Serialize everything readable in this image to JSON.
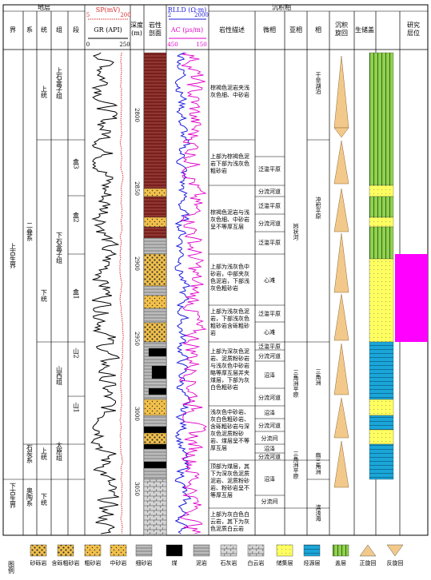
{
  "headers": {
    "strata": "地层",
    "jie": "界",
    "xi": "系",
    "tong": "统",
    "zu": "组",
    "duan": "段",
    "sp_label": "SP(mV)",
    "sp_min": "5",
    "sp_max": "200",
    "gr_label": "GR (API)",
    "gr_min": "0",
    "gr_max": "250",
    "depth_label_1": "深度",
    "depth_label_2": "(m)",
    "litho_label_1": "岩性",
    "litho_label_2": "剖面",
    "rlld_label": "RLLD (Ω·m)",
    "rlld_min": "2",
    "rlld_max": "2000",
    "ac_label": "AC (μs/m)",
    "ac_min": "450",
    "ac_max": "150",
    "facies": "沉积相",
    "rock_desc": "岩性描述",
    "micro": "微相",
    "sub": "亚相",
    "phase": "相",
    "cycle_1": "沉积",
    "cycle_2": "旋回",
    "cycle_3": "",
    "reservoir": "生储盖",
    "study_1": "研究",
    "study_2": "层位"
  },
  "strata": {
    "jie": [
      {
        "label": "上古生界"
      },
      {
        "label": "下古生界"
      }
    ],
    "xi": [
      {
        "label": "二叠系"
      },
      {
        "label": "石炭系"
      },
      {
        "label": "奥陶系"
      }
    ],
    "tong": [
      {
        "label": "上统"
      },
      {
        "label": "下统"
      },
      {
        "label": "上统"
      },
      {
        "label": "下统"
      }
    ],
    "zu": [
      {
        "label": "上石盒子组"
      },
      {
        "label": "下石盒子组"
      },
      {
        "label": "山西组"
      },
      {
        "label": "太原组"
      }
    ],
    "duan": [
      {
        "label": "盒3"
      },
      {
        "label": "盒2"
      },
      {
        "label": "盒1"
      },
      {
        "label": "山2"
      },
      {
        "label": "山1"
      }
    ]
  },
  "depth_ticks": [
    "2800",
    "2850",
    "2900",
    "2950",
    "3000",
    "3050"
  ],
  "descriptions": [
    "棕褐色泥岩夹浅灰色细、中砂岩",
    "上部为棕褐色泥岩下部为浅灰色粗砂岩",
    "棕褐色泥岩与浅灰色细、中砂岩呈不等厚互层",
    "上部为浅灰色中砂岩，中部夹灰色泥岩，下部浅灰色粗砂岩",
    "上部为浅灰色泥岩，下部浅灰色粗砂岩含砾粗砂岩",
    "上部为深灰色泥岩、泥质粉砂岩与浅灰色中砂岩略等厚互层并夹煤层，下部为灰白色粗砂岩",
    "浅灰色中砂岩、灰白色粗砂岩、含砾粗砂岩与深灰色泥质粉砂岩、煤层呈不等厚互层",
    "顶部为煤层，其下为深灰色泥质泥岩、泥质粉砂岩、粉砂岩呈不等厚互层",
    "上部为灰白色白云岩，其下为灰色泥质白云岩"
  ],
  "micro": [
    "泛滥平原",
    "分流河道",
    "泛滥平原",
    "分流河道",
    "泛滥平原",
    "心滩",
    "泛滥平原",
    "心滩",
    "泛滥平原",
    "分流河道",
    "沼泽",
    "分流河道",
    "沼泽",
    "分流河道",
    "分流间",
    "沼泽",
    "分流河道",
    "沼泽",
    "分流间"
  ],
  "sub": [
    {
      "label": "辫状河"
    },
    {
      "label": "三角洲平原"
    },
    {
      "label": "三角洲平原"
    }
  ],
  "phase": [
    {
      "label": "干旱湖泊"
    },
    {
      "label": "冲积平原"
    },
    {
      "label": "三角洲"
    },
    {
      "label": "扇三角洲"
    },
    {
      "label": "滨浅海"
    }
  ],
  "legend": {
    "title": "图例",
    "items": [
      "砂砾岩",
      "含砾粗砂岩",
      "粗砂岩",
      "中砂岩",
      "细砂岩",
      "煤",
      "泥岩",
      "石灰岩",
      "白云岩",
      "储集层",
      "烃源层",
      "盖层",
      "正旋回",
      "反旋回"
    ]
  },
  "colors": {
    "sp_curve": "#d42a2a",
    "gr_curve": "#000000",
    "rlld_curve": "#1b1bd8",
    "ac_curve": "#e000c8",
    "litho_mudstone": "#7a1e1e",
    "litho_sandstone": "#f2c04a",
    "reservoir": "#ffff60",
    "source": "#1aa6d8",
    "seal": "#92d050",
    "study": "#ff00ff",
    "cycle": "#f2c98a"
  }
}
